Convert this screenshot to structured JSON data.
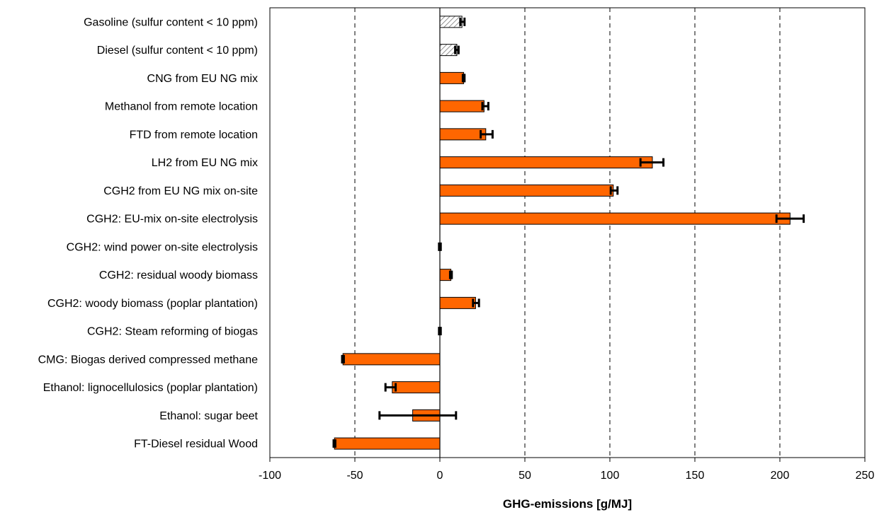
{
  "chart_data": {
    "type": "bar",
    "orientation": "horizontal",
    "xlabel": "GHG-emissions [g/MJ]",
    "xlim": [
      -100,
      250
    ],
    "xticks": [
      -100,
      -50,
      0,
      50,
      100,
      150,
      200,
      250
    ],
    "grid": "vertical dashed",
    "colors": {
      "bar": "#ff6600",
      "reference_bar": "#d9d9d9",
      "outline": "#000000",
      "error": "#000000"
    },
    "categories": [
      "Gasoline (sulfur content < 10 ppm)",
      "Diesel (sulfur content < 10 ppm)",
      "CNG from EU NG mix",
      "Methanol from remote location",
      "FTD from remote location",
      "LH2 from EU NG mix",
      "CGH2 from EU NG mix on-site",
      "CGH2: EU-mix on-site electrolysis",
      "CGH2: wind power on-site electrolysis",
      "CGH2: residual woody biomass",
      "CGH2: woody biomass (poplar plantation)",
      "CGH2: Steam reforming of biogas",
      "CMG: Biogas derived compressed methane",
      "Ethanol: lignocellulosics (poplar plantation)",
      "Ethanol: sugar beet",
      "FT-Diesel residual Wood"
    ],
    "values": [
      13,
      10,
      14,
      26,
      27,
      125,
      102,
      206,
      0,
      6.5,
      21,
      0,
      -57,
      -28,
      -16,
      -62
    ],
    "error_low": [
      12,
      9,
      13.5,
      25,
      24,
      118,
      100.5,
      198,
      -0.5,
      6,
      19.5,
      -0.5,
      -57.5,
      -32,
      -35.5,
      -62.5
    ],
    "error_high": [
      14.5,
      11,
      14.5,
      28.5,
      31,
      131.5,
      104.5,
      214,
      0.5,
      7,
      23,
      0.5,
      -56.5,
      -26,
      9.5,
      -61.5
    ],
    "hatched": [
      true,
      true,
      false,
      false,
      false,
      false,
      false,
      false,
      false,
      false,
      false,
      false,
      false,
      false,
      false,
      false
    ]
  }
}
